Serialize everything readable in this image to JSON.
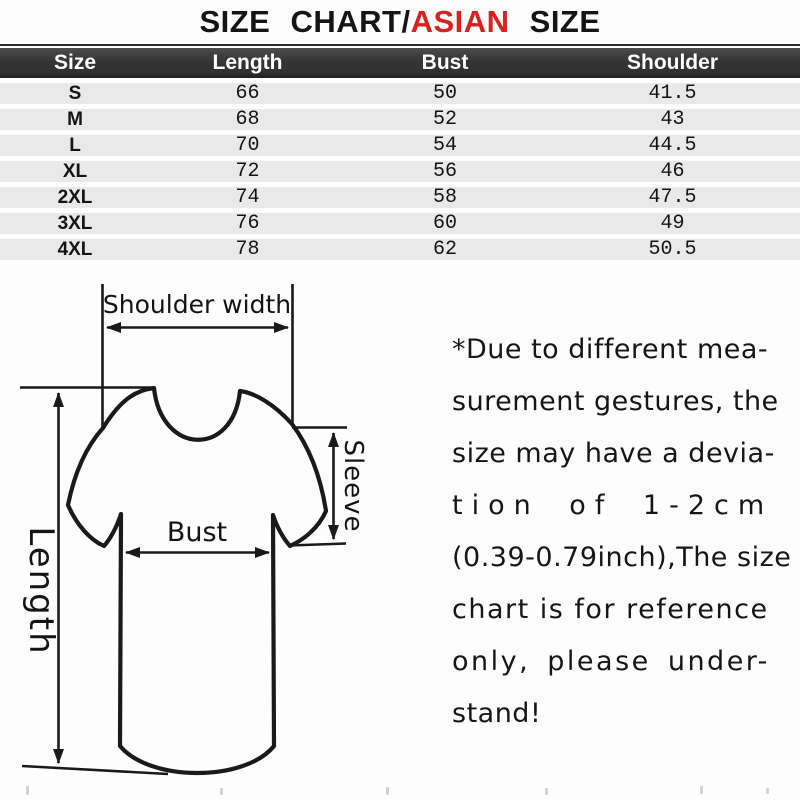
{
  "title": {
    "part1": "SIZE CHART/",
    "highlight": "ASIAN",
    "part2": " SIZE"
  },
  "colors": {
    "accent_red": "#d7221d",
    "header_bg": "#343434",
    "row_bg": "#e9e9e9",
    "ink": "#1a1a1a"
  },
  "chart_data": {
    "type": "table",
    "title": "SIZE CHART/ASIAN SIZE",
    "columns": [
      "Size",
      "Length",
      "Bust",
      "Shoulder"
    ],
    "rows": [
      [
        "S",
        "66",
        "50",
        "41.5"
      ],
      [
        "M",
        "68",
        "52",
        "43"
      ],
      [
        "L",
        "70",
        "54",
        "44.5"
      ],
      [
        "XL",
        "72",
        "56",
        "46"
      ],
      [
        "2XL",
        "74",
        "58",
        "47.5"
      ],
      [
        "3XL",
        "76",
        "60",
        "49"
      ],
      [
        "4XL",
        "78",
        "62",
        "50.5"
      ]
    ]
  },
  "diagram": {
    "shoulder_label": "Shoulder width",
    "sleeve_label": "Sleeve",
    "bust_label": "Bust",
    "length_label": "Length"
  },
  "note": {
    "lines": [
      "*Due to different mea-",
      "surement gestures, the",
      "size may have a devia-",
      "tion of 1-2cm",
      "(0.39-0.79inch),The size",
      "chart is for reference",
      "only, please under-",
      "stand!"
    ]
  }
}
